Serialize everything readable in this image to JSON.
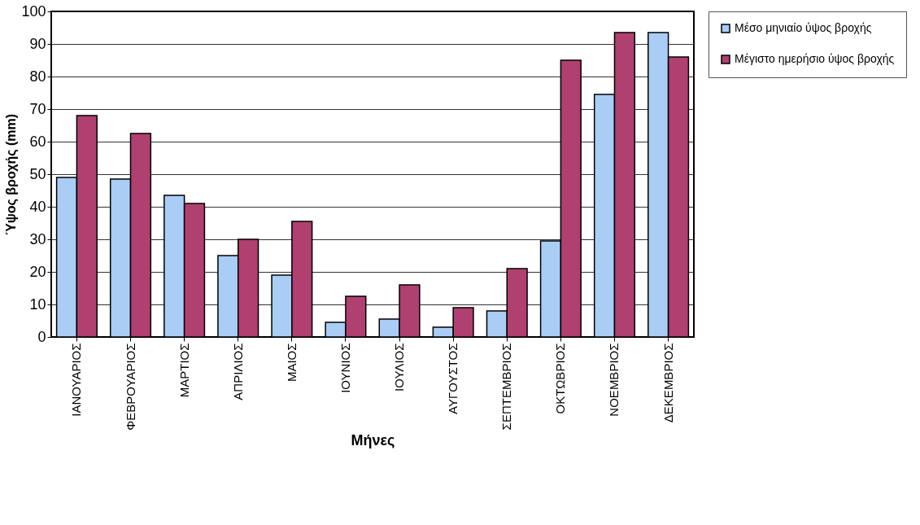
{
  "chart_data": {
    "type": "bar",
    "xlabel": "Μήνες",
    "ylabel": "Ύψος βροχής (mm)",
    "categories": [
      "ΙΑΝΟΥΑΡΙΟΣ",
      "ΦΕΒΡΟΥΑΡΙΟΣ",
      "ΜΑΡΤΙΟΣ",
      "ΑΠΡΙΛΙΟΣ",
      "ΜΑΙΟΣ",
      "ΙΟΥΝΙΟΣ",
      "ΙΟΥΛΙΟΣ",
      "ΑΥΓΟΥΣΤΟΣ",
      "ΣΕΠΤΕΜΒΡΙΟΣ",
      "ΟΚΤΩΒΡΙΟΣ",
      "ΝΟΕΜΒΡΙΟΣ",
      "ΔΕΚΕΜΒΡΙΟΣ"
    ],
    "series": [
      {
        "name": "Μέσο μηνιαίο ύψος βροχής",
        "color": "#a9cdf5",
        "values": [
          49,
          48.5,
          43.5,
          25,
          19,
          4.5,
          5.5,
          3,
          8,
          29.5,
          74.5,
          93.5
        ]
      },
      {
        "name": "Μέγιστο ημερήσιο ύψος βροχής",
        "color": "#b04070",
        "values": [
          68,
          62.5,
          41,
          30,
          35.5,
          12.5,
          16,
          9,
          21,
          85,
          93.5,
          86
        ]
      }
    ],
    "ylim": [
      0,
      100
    ],
    "yticks": [
      0,
      10,
      20,
      30,
      40,
      50,
      60,
      70,
      80,
      90,
      100
    ],
    "grid": "y",
    "legend": "right"
  }
}
